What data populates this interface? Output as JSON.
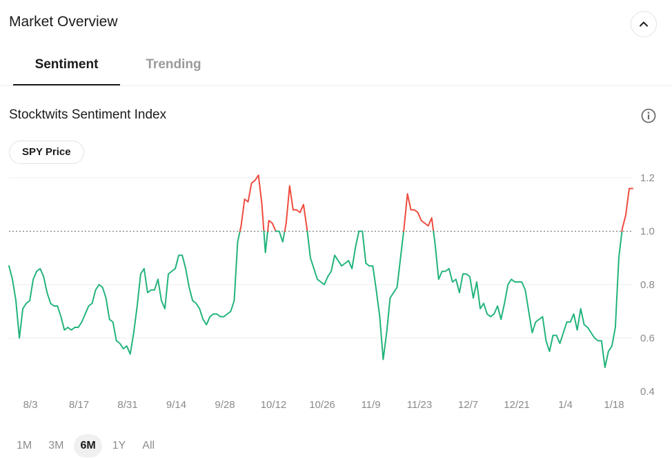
{
  "header": {
    "title": "Market Overview",
    "collapse_icon": "chevron-up-icon"
  },
  "tabs": [
    {
      "label": "Sentiment",
      "active": true
    },
    {
      "label": "Trending",
      "active": false
    }
  ],
  "section": {
    "title": "Stocktwits Sentiment Index",
    "info_icon": "info-icon"
  },
  "pill": {
    "label": "SPY Price"
  },
  "ranges": [
    {
      "label": "1M",
      "active": false
    },
    {
      "label": "3M",
      "active": false
    },
    {
      "label": "6M",
      "active": true
    },
    {
      "label": "1Y",
      "active": false
    },
    {
      "label": "All",
      "active": false
    }
  ],
  "colors": {
    "above": "#ef4b3e",
    "below": "#21b37a",
    "reference": "#666666",
    "grid": "#ededed"
  },
  "chart_data": {
    "type": "line",
    "xlabel": "",
    "ylabel": "",
    "x_ticks": [
      "8/3",
      "8/17",
      "8/31",
      "9/14",
      "9/28",
      "10/12",
      "10/26",
      "11/9",
      "11/23",
      "12/7",
      "12/21",
      "1/4",
      "1/18"
    ],
    "y_ticks": [
      0.4,
      0.6,
      0.8,
      1.0,
      1.2
    ],
    "ylim": [
      0.4,
      1.2
    ],
    "reference_line": 1.0,
    "grid": true,
    "y_axis_side": "right",
    "series": [
      {
        "values": [
          0.87,
          0.82,
          0.74,
          0.6,
          0.71,
          0.73,
          0.74,
          0.82,
          0.85,
          0.86,
          0.83,
          0.77,
          0.73,
          0.72,
          0.72,
          0.68,
          0.63,
          0.64,
          0.63,
          0.64,
          0.64,
          0.66,
          0.69,
          0.72,
          0.73,
          0.78,
          0.8,
          0.79,
          0.75,
          0.67,
          0.66,
          0.59,
          0.58,
          0.56,
          0.57,
          0.54,
          0.62,
          0.72,
          0.84,
          0.86,
          0.77,
          0.78,
          0.78,
          0.82,
          0.74,
          0.71,
          0.84,
          0.85,
          0.86,
          0.91,
          0.91,
          0.86,
          0.79,
          0.74,
          0.73,
          0.71,
          0.67,
          0.65,
          0.68,
          0.69,
          0.69,
          0.68,
          0.68,
          0.69,
          0.7,
          0.74,
          0.96,
          1.02,
          1.12,
          1.11,
          1.18,
          1.19,
          1.21,
          1.1,
          0.92,
          1.04,
          1.03,
          1.0,
          1.0,
          0.96,
          1.03,
          1.17,
          1.08,
          1.08,
          1.07,
          1.1,
          1.01,
          0.9,
          0.86,
          0.82,
          0.81,
          0.8,
          0.83,
          0.85,
          0.91,
          0.89,
          0.87,
          0.88,
          0.89,
          0.86,
          0.94,
          1.0,
          1.0,
          0.88,
          0.87,
          0.87,
          0.78,
          0.68,
          0.52,
          0.62,
          0.75,
          0.77,
          0.79,
          0.9,
          1.01,
          1.14,
          1.08,
          1.08,
          1.07,
          1.04,
          1.03,
          1.02,
          1.05,
          0.95,
          0.82,
          0.85,
          0.85,
          0.86,
          0.81,
          0.82,
          0.77,
          0.84,
          0.84,
          0.83,
          0.75,
          0.81,
          0.71,
          0.73,
          0.69,
          0.68,
          0.69,
          0.72,
          0.67,
          0.73,
          0.8,
          0.82,
          0.81,
          0.81,
          0.81,
          0.78,
          0.7,
          0.62,
          0.66,
          0.67,
          0.68,
          0.59,
          0.55,
          0.61,
          0.61,
          0.58,
          0.62,
          0.66,
          0.66,
          0.69,
          0.63,
          0.71,
          0.65,
          0.64,
          0.62,
          0.6,
          0.59,
          0.59,
          0.49,
          0.55,
          0.57,
          0.64,
          0.9,
          1.01,
          1.06,
          1.16,
          1.16
        ]
      }
    ]
  }
}
